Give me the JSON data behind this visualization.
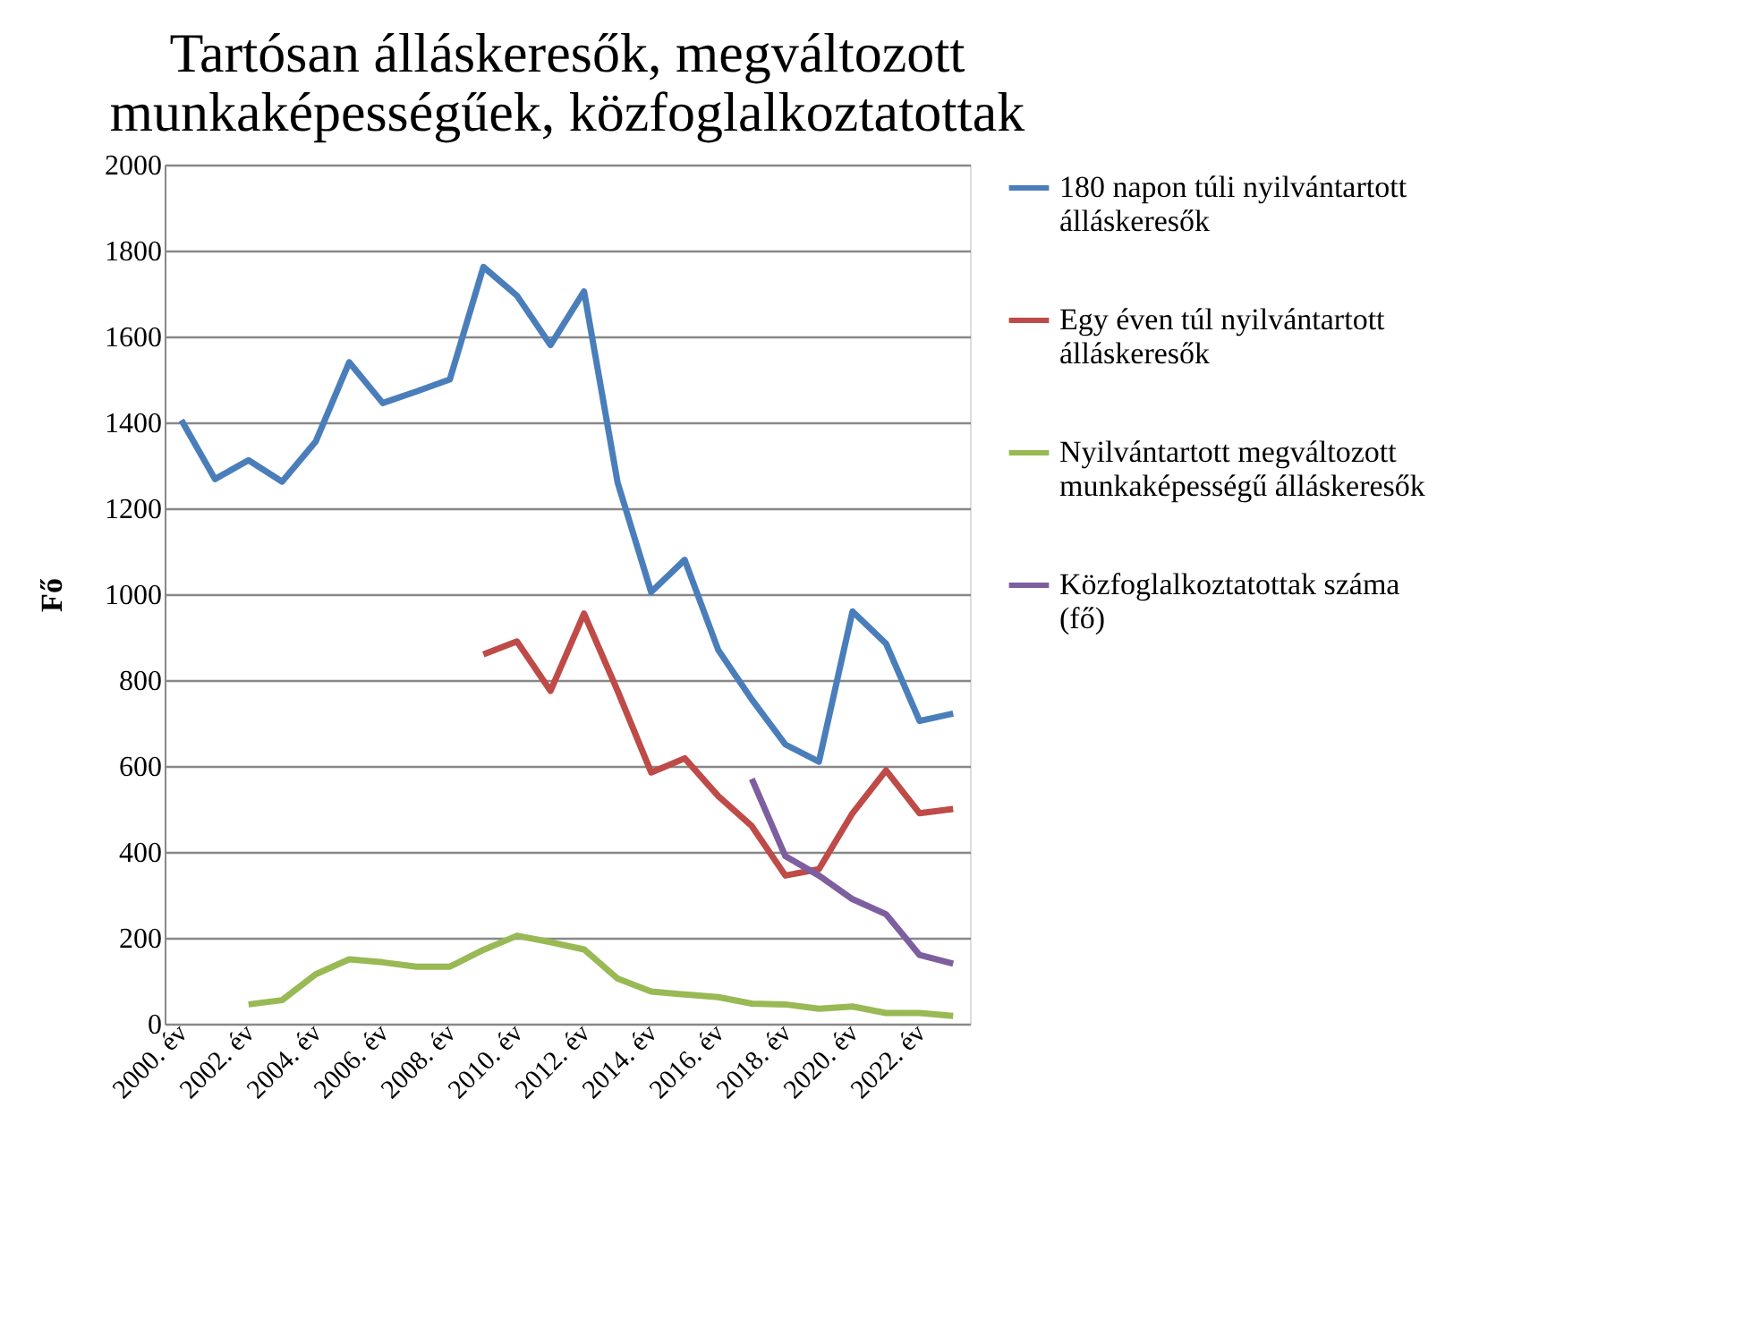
{
  "chart_data": {
    "type": "line",
    "title": "Tartósan álláskeresők, megváltozott munkaképességűek, közfoglalkoztatottak",
    "ylabel": "Fő",
    "categories": [
      "2000. év",
      null,
      "2002. év",
      null,
      "2004. év",
      null,
      "2006. év",
      null,
      "2008. év",
      null,
      "2010. év",
      null,
      "2012. év",
      null,
      "2014. év",
      null,
      "2016. év",
      null,
      "2018. év",
      null,
      "2020. év",
      null,
      "2022. év",
      null
    ],
    "series": [
      {
        "name": "180 napon túli nyilvántartott álláskeresők",
        "color": "#4a7ebb",
        "values": [
          1405,
          1268,
          1312,
          1262,
          1355,
          1540,
          1445,
          1472,
          1500,
          1762,
          1695,
          1580,
          1705,
          1260,
          1005,
          1080,
          870,
          755,
          650,
          610,
          960,
          885,
          705,
          722
        ]
      },
      {
        "name": "Egy éven túl nyilvántartott álláskeresők",
        "color": "#be4b48",
        "values": [
          null,
          null,
          null,
          null,
          null,
          null,
          null,
          null,
          null,
          860,
          890,
          775,
          955,
          775,
          585,
          618,
          530,
          460,
          345,
          360,
          490,
          590,
          490,
          500
        ]
      },
      {
        "name": "Nyilvántartott megváltozott munkaképességű álláskeresők",
        "color": "#98b954",
        "values": [
          null,
          null,
          45,
          55,
          115,
          150,
          143,
          133,
          133,
          172,
          205,
          190,
          173,
          105,
          75,
          68,
          62,
          47,
          45,
          35,
          40,
          25,
          25,
          18
        ]
      },
      {
        "name": "Közfoglalkoztatottak száma (fő)",
        "color": "#7d5fa0",
        "values": [
          null,
          null,
          null,
          null,
          null,
          null,
          null,
          null,
          null,
          null,
          null,
          null,
          null,
          null,
          null,
          null,
          null,
          570,
          390,
          345,
          290,
          255,
          160,
          140
        ]
      }
    ],
    "ylim": [
      0,
      2000
    ],
    "yticks": [
      0,
      200,
      400,
      600,
      800,
      1000,
      1200,
      1400,
      1600,
      1800,
      2000
    ],
    "grid": "y",
    "legend": "right",
    "marker": "none",
    "line_style": "solid"
  }
}
